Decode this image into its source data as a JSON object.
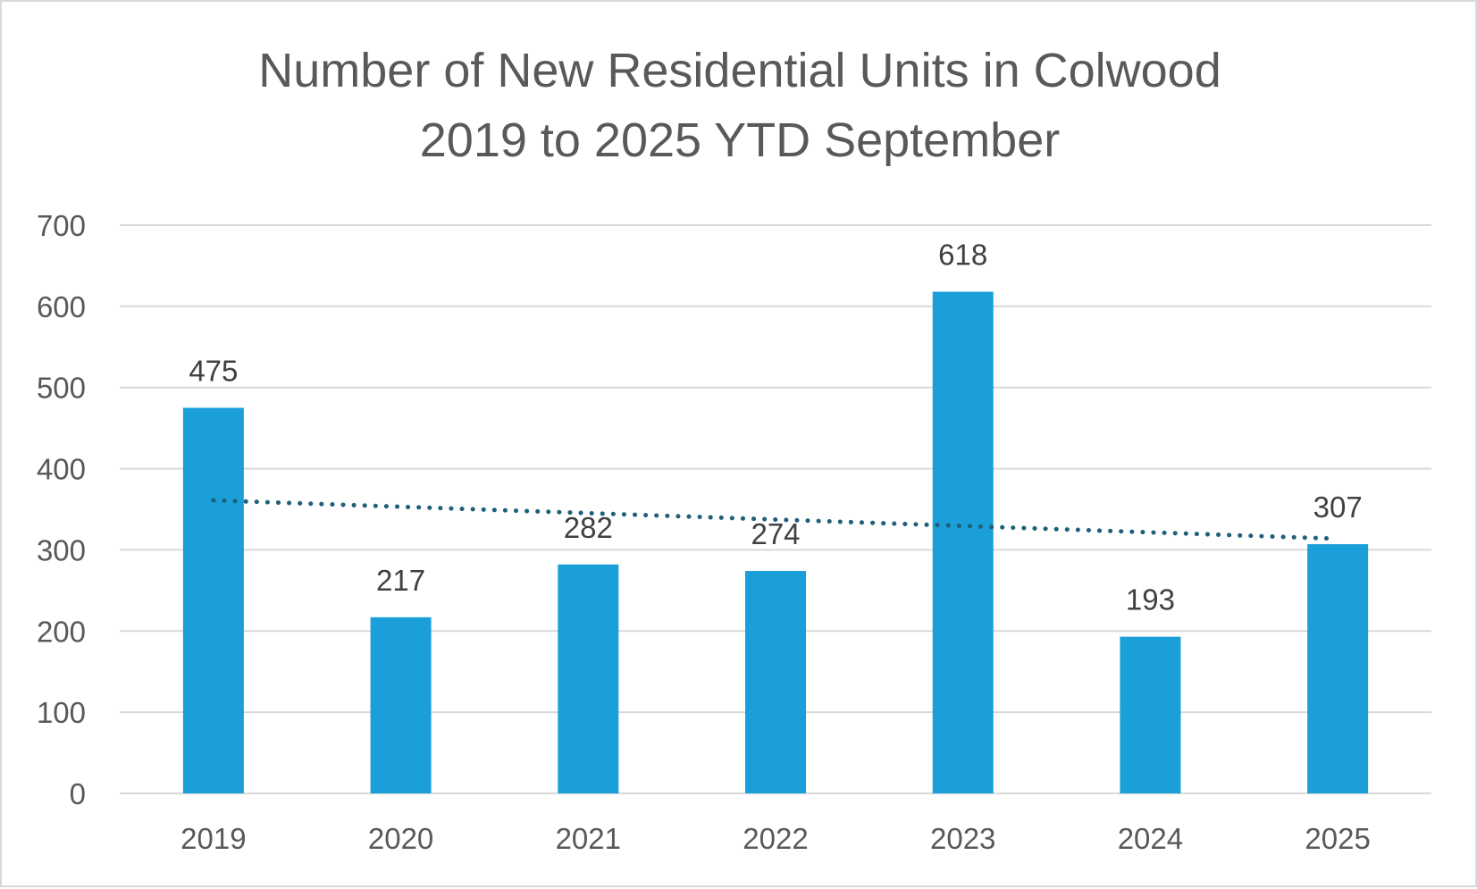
{
  "chart_data": {
    "type": "bar",
    "title": "Number of New Residential Units in Colwood",
    "subtitle": "2019 to 2025 YTD September",
    "categories": [
      "2019",
      "2020",
      "2021",
      "2022",
      "2023",
      "2024",
      "2025"
    ],
    "values": [
      475,
      217,
      282,
      274,
      618,
      193,
      307
    ],
    "data_labels": [
      "475",
      "217",
      "282",
      "274",
      "618",
      "193",
      "307"
    ],
    "ylim": [
      0,
      700
    ],
    "y_ticks": [
      0,
      100,
      200,
      300,
      400,
      500,
      600,
      700
    ],
    "y_tick_labels": [
      "0",
      "100",
      "200",
      "300",
      "400",
      "500",
      "600",
      "700"
    ],
    "xlabel": "",
    "ylabel": "",
    "grid": true,
    "legend": "none",
    "trendline": {
      "type": "linear",
      "style": "dotted",
      "start": 361,
      "end": 314
    },
    "colors": {
      "bar": "#1a9fd8",
      "trendline": "#1f5f7a",
      "grid": "#d9d9d9",
      "text": "#595959"
    }
  }
}
